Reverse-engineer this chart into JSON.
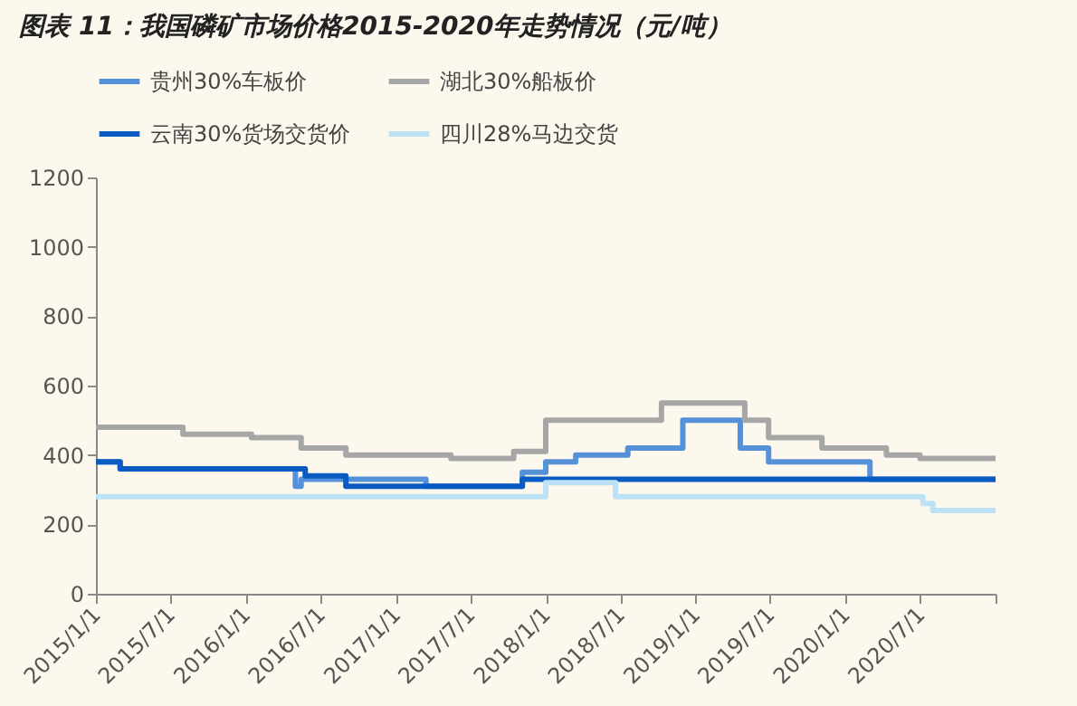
{
  "chart_data": {
    "type": "step",
    "title": "图表 11：我国磷矿市场价格2015-2020年走势情况（元/吨）",
    "series": [
      {
        "name": "贵州30%车板价",
        "color": "#5591d8",
        "x": [
          "2015-01-01",
          "2015-03-01",
          "2016-05-01",
          "2016-05-15",
          "2017-03-15",
          "2017-11-05",
          "2018-01-01",
          "2018-03-15",
          "2018-07-20",
          "2018-12-01",
          "2019-04-20",
          "2019-06-28",
          "2020-03-01",
          "2021-01-01"
        ],
        "values": [
          380,
          360,
          310,
          330,
          310,
          350,
          380,
          400,
          420,
          500,
          420,
          380,
          330,
          330
        ]
      },
      {
        "name": "湖北30%船板价",
        "color": "#a6a6a6",
        "x": [
          "2015-01-01",
          "2015-08-01",
          "2016-01-15",
          "2016-05-15",
          "2016-09-01",
          "2017-05-15",
          "2017-10-15",
          "2018-01-01",
          "2018-10-10",
          "2019-05-01",
          "2019-06-28",
          "2019-11-05",
          "2020-04-10",
          "2020-07-01",
          "2021-01-01"
        ],
        "values": [
          480,
          460,
          450,
          420,
          400,
          390,
          410,
          500,
          550,
          500,
          450,
          420,
          400,
          390,
          390
        ]
      },
      {
        "name": "云南30%货场交货价",
        "color": "#0a5cc2",
        "x": [
          "2015-01-01",
          "2015-03-01",
          "2016-05-25",
          "2016-09-01",
          "2017-11-05",
          "2018-01-01",
          "2021-01-01"
        ],
        "values": [
          380,
          360,
          340,
          310,
          330,
          330,
          330
        ]
      },
      {
        "name": "四川28%马边交货",
        "color": "#bde2f6",
        "x": [
          "2015-01-01",
          "2018-01-01",
          "2018-06-20",
          "2020-07-08",
          "2020-08-01",
          "2021-01-01"
        ],
        "values": [
          280,
          320,
          280,
          260,
          240,
          240
        ]
      }
    ],
    "xlim": [
      "2015-01-01",
      "2021-01-01"
    ],
    "xticks": [
      {
        "value": "2015-01-01",
        "label": "2015/1/1"
      },
      {
        "value": "2015-07-01",
        "label": "2015/7/1"
      },
      {
        "value": "2016-01-01",
        "label": "2016/1/1"
      },
      {
        "value": "2016-07-01",
        "label": "2016/7/1"
      },
      {
        "value": "2017-01-01",
        "label": "2017/1/1"
      },
      {
        "value": "2017-07-01",
        "label": "2017/7/1"
      },
      {
        "value": "2018-01-01",
        "label": "2018/1/1"
      },
      {
        "value": "2018-07-01",
        "label": "2018/7/1"
      },
      {
        "value": "2019-01-01",
        "label": "2019/1/1"
      },
      {
        "value": "2019-07-01",
        "label": "2019/7/1"
      },
      {
        "value": "2020-01-01",
        "label": "2020/1/1"
      },
      {
        "value": "2020-07-01",
        "label": "2020/7/1"
      },
      {
        "value": "2021-01-01",
        "label": null
      }
    ],
    "ylim": [
      0,
      1200
    ],
    "yticks": [
      0,
      200,
      400,
      600,
      800,
      1000,
      1200
    ],
    "grid": false,
    "legend": "top",
    "line_style": "solid",
    "marker": "none"
  }
}
